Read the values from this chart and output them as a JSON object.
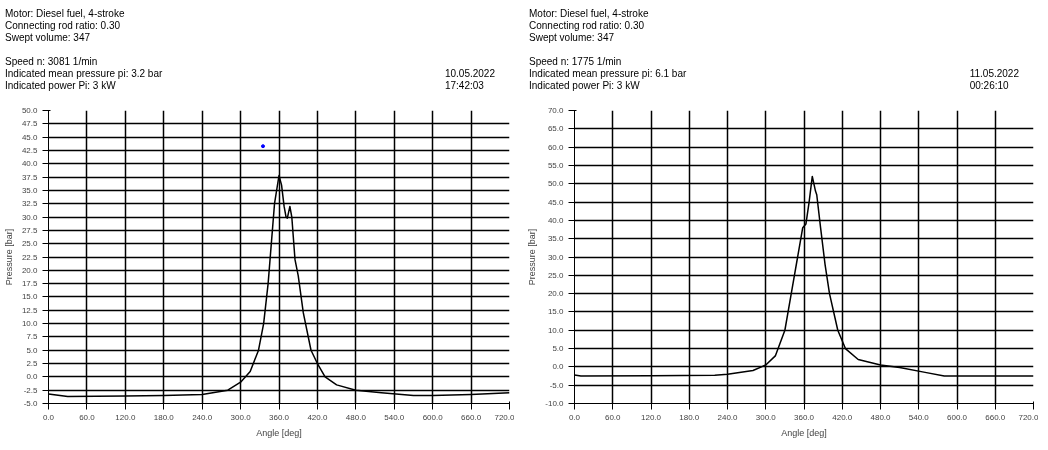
{
  "chart_data": [
    {
      "type": "line",
      "title": "Motor: Diesel fuel, 4-stroke",
      "annotations": [
        "Connecting rod ratio: 0.30",
        "Swept volume: 347",
        "Speed n: 3081 1/min",
        "Indicated mean pressure pi: 3.2 bar",
        "Indicated power Pi: 3 kW",
        "10.05.2022",
        "17:42:03"
      ],
      "xlabel": "Angle [deg]",
      "ylabel": "Pressure [bar]",
      "xlim": [
        0,
        720
      ],
      "ylim": [
        -5,
        50
      ],
      "xticks": [
        {
          "value": 0,
          "label": "0.0"
        },
        {
          "value": 60,
          "label": "60.0"
        },
        {
          "value": 120,
          "label": "120.0"
        },
        {
          "value": 180,
          "label": "180.0"
        },
        {
          "value": 240,
          "label": "240.0"
        },
        {
          "value": 300,
          "label": "300.0"
        },
        {
          "value": 360,
          "label": "360.0"
        },
        {
          "value": 420,
          "label": "420.0"
        },
        {
          "value": 480,
          "label": "480.0"
        },
        {
          "value": 540,
          "label": "540.0"
        },
        {
          "value": 600,
          "label": "600.0"
        },
        {
          "value": 660,
          "label": "660.0"
        },
        {
          "value": 720,
          "label": "720.0"
        }
      ],
      "yticks": [
        {
          "value": -5,
          "label": "-5.0"
        },
        {
          "value": -2.5,
          "label": "-2.5"
        },
        {
          "value": 0,
          "label": "0.0"
        },
        {
          "value": 2.5,
          "label": "2.5"
        },
        {
          "value": 5,
          "label": "5.0"
        },
        {
          "value": 7.5,
          "label": "7.5"
        },
        {
          "value": 10,
          "label": "10.0"
        },
        {
          "value": 12.5,
          "label": "12.5"
        },
        {
          "value": 15,
          "label": "15.0"
        },
        {
          "value": 17.5,
          "label": "17.5"
        },
        {
          "value": 20,
          "label": "20.0"
        },
        {
          "value": 22.5,
          "label": "22.5"
        },
        {
          "value": 25,
          "label": "25.0"
        },
        {
          "value": 27.5,
          "label": "27.5"
        },
        {
          "value": 30,
          "label": "30.0"
        },
        {
          "value": 32.5,
          "label": "32.5"
        },
        {
          "value": 35,
          "label": "35.0"
        },
        {
          "value": 37.5,
          "label": "37.5"
        },
        {
          "value": 40,
          "label": "40.0"
        },
        {
          "value": 42.5,
          "label": "42.5"
        },
        {
          "value": 45,
          "label": "45.0"
        },
        {
          "value": 47.5,
          "label": "47.5"
        },
        {
          "value": 50,
          "label": "50.0"
        }
      ],
      "grid": true,
      "line_style": "solid",
      "series": [
        {
          "color": "#000000",
          "x": [
            0,
            30,
            120,
            180,
            240,
            280,
            300,
            315,
            328,
            336,
            343,
            348,
            353,
            360,
            364,
            368,
            371,
            373,
            377,
            380,
            385,
            390,
            398,
            410,
            420,
            432,
            450,
            480,
            520,
            570,
            600,
            660,
            720
          ],
          "values": [
            -3.2,
            -3.7,
            -3.6,
            -3.5,
            -3.3,
            -2.5,
            -1.0,
            1.0,
            5,
            10,
            17.5,
            25,
            32.5,
            37.8,
            36,
            32,
            30,
            29.8,
            32,
            30,
            22,
            19,
            12,
            5,
            2.5,
            0,
            -1.5,
            -2.5,
            -3,
            -3.5,
            -3.5,
            -3.3,
            -3
          ]
        },
        {
          "type": "scatter",
          "color": "#0000ff",
          "x": [
            335
          ],
          "values": [
            43.3
          ]
        }
      ]
    },
    {
      "type": "line",
      "title": "Motor: Diesel fuel, 4-stroke",
      "annotations": [
        "Connecting rod ratio: 0.30",
        "Swept volume: 347",
        "Speed n: 1775 1/min",
        "Indicated mean pressure pi: 6.1 bar",
        "Indicated power Pi: 3 kW",
        "11.05.2022",
        "00:26:10"
      ],
      "xlabel": "Angle [deg]",
      "ylabel": "Pressure [bar]",
      "xlim": [
        0,
        720
      ],
      "ylim": [
        -10,
        70
      ],
      "xticks": [
        {
          "value": 0,
          "label": "0.0"
        },
        {
          "value": 60,
          "label": "60.0"
        },
        {
          "value": 120,
          "label": "120.0"
        },
        {
          "value": 180,
          "label": "180.0"
        },
        {
          "value": 240,
          "label": "240.0"
        },
        {
          "value": 300,
          "label": "300.0"
        },
        {
          "value": 360,
          "label": "360.0"
        },
        {
          "value": 420,
          "label": "420.0"
        },
        {
          "value": 480,
          "label": "480.0"
        },
        {
          "value": 540,
          "label": "540.0"
        },
        {
          "value": 600,
          "label": "600.0"
        },
        {
          "value": 660,
          "label": "660.0"
        },
        {
          "value": 720,
          "label": "720.0"
        }
      ],
      "yticks": [
        {
          "value": -10,
          "label": "-10.0"
        },
        {
          "value": -5,
          "label": "-5.0"
        },
        {
          "value": 0,
          "label": "0.0"
        },
        {
          "value": 5,
          "label": "5.0"
        },
        {
          "value": 10,
          "label": "10.0"
        },
        {
          "value": 15,
          "label": "15.0"
        },
        {
          "value": 20,
          "label": "20.0"
        },
        {
          "value": 25,
          "label": "25.0"
        },
        {
          "value": 30,
          "label": "30.0"
        },
        {
          "value": 35,
          "label": "35.0"
        },
        {
          "value": 40,
          "label": "40.0"
        },
        {
          "value": 45,
          "label": "45.0"
        },
        {
          "value": 50,
          "label": "50.0"
        },
        {
          "value": 55,
          "label": "55.0"
        },
        {
          "value": 60,
          "label": "60.0"
        },
        {
          "value": 65,
          "label": "65.0"
        },
        {
          "value": 70,
          "label": "70.0"
        }
      ],
      "grid": true,
      "line_style": "solid",
      "series": [
        {
          "color": "#000000",
          "x": [
            0,
            10,
            120,
            220,
            240,
            280,
            300,
            315,
            330,
            340,
            350,
            358,
            363,
            368,
            373,
            378,
            380,
            386,
            393,
            400,
            413,
            425,
            445,
            480,
            510,
            550,
            580,
            720
          ],
          "values": [
            -2.2,
            -2.5,
            -2.4,
            -2.3,
            -2,
            -1,
            0.5,
            3,
            10,
            20,
            30,
            38,
            39,
            45,
            52,
            48,
            47,
            38,
            28,
            20,
            10,
            5,
            2,
            0.5,
            -0.2,
            -1.5,
            -2.5,
            -2.5
          ]
        }
      ]
    }
  ]
}
